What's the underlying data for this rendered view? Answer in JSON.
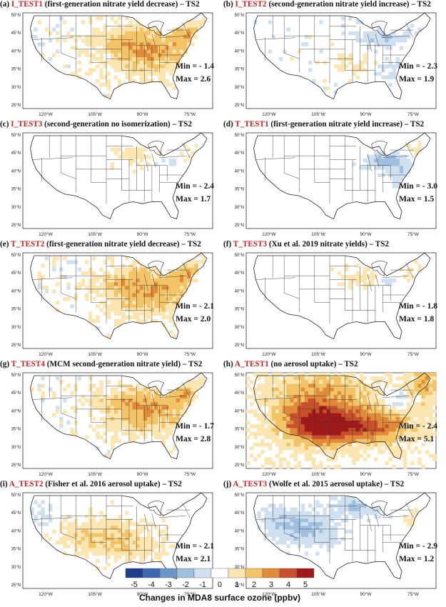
{
  "panels": [
    {
      "letter": "(a)",
      "run": "I_TEST1",
      "desc": "(first-generation nitrate yield decrease) – TS2",
      "min": "Min = - 1.4",
      "max": "Max = 2.6",
      "pattern": "east_pos"
    },
    {
      "letter": "(b)",
      "run": "I_TEST2",
      "desc": "(second-generation nitrate yield increase) – TS2",
      "min": "Min = - 2.3",
      "max": "Max = 1.9",
      "pattern": "east_mixed"
    },
    {
      "letter": "(c)",
      "run": "I_TEST3",
      "desc": "(second-generation no isomerization) – TS2",
      "min": "Min = - 2.4",
      "max": "Max = 1.7",
      "pattern": "weak"
    },
    {
      "letter": "(d)",
      "run": "T_TEST1",
      "desc": "(first-generation nitrate yield increase) – TS2",
      "min": "Min = - 3.0",
      "max": "Max = 1.5",
      "pattern": "east_neg"
    },
    {
      "letter": "(e)",
      "run": "T_TEST2",
      "desc": "(first-generation nitrate yield decrease) – TS2",
      "min": "Min = - 2.1",
      "max": "Max = 2.0",
      "pattern": "east_pos"
    },
    {
      "letter": "(f)",
      "run": "T_TEST3",
      "desc": "(Xu et al. 2019 nitrate yields) – TS2",
      "min": "Min = - 1.8",
      "max": "Max = 1.8",
      "pattern": "weak"
    },
    {
      "letter": "(g)",
      "run": "T_TEST4",
      "desc": "(MCM second-generation nitrate yield) – TS2",
      "min": "Min = - 1.7",
      "max": "Max = 2.8",
      "pattern": "east_pos"
    },
    {
      "letter": "(h)",
      "run": "A_TEST1",
      "desc": "(no aerosol uptake) – TS2",
      "min": "Min = - 2.4",
      "max": "Max = 5.1",
      "pattern": "strong_pos"
    },
    {
      "letter": "(i)",
      "run": "A_TEST2",
      "desc": "(Fisher et al. 2016 aerosol uptake) – TS2",
      "min": "Min = - 2.1",
      "max": "Max = 2.1",
      "pattern": "south_pos"
    },
    {
      "letter": "(j)",
      "run": "A_TEST3",
      "desc": "(Wolfe et al. 2015 aerosol uptake) – TS2",
      "min": "Min = - 2.9",
      "max": "Max = 1.2",
      "pattern": "neg"
    }
  ],
  "map_axes": {
    "lat_labels": [
      "50°N",
      "45°N",
      "40°N",
      "35°N",
      "30°N",
      "25°N"
    ],
    "lon_labels": [
      "120°W",
      "105°W",
      "90°W",
      "75°W"
    ]
  },
  "colorbar": {
    "label": "Changes in MDA8 surface ozone (ppbv)",
    "ticks": [
      "-5",
      "-4",
      "-3",
      "-2",
      "-1",
      "0",
      "1",
      "2",
      "3",
      "4",
      "5"
    ],
    "colors": [
      "#1f3d8c",
      "#3c68ad",
      "#6b95c8",
      "#9fbfdf",
      "#cfe0f1",
      "#ffffff",
      "#fbe5b0",
      "#f2c466",
      "#e08a3a",
      "#c8502a",
      "#9e1a1a"
    ]
  }
}
